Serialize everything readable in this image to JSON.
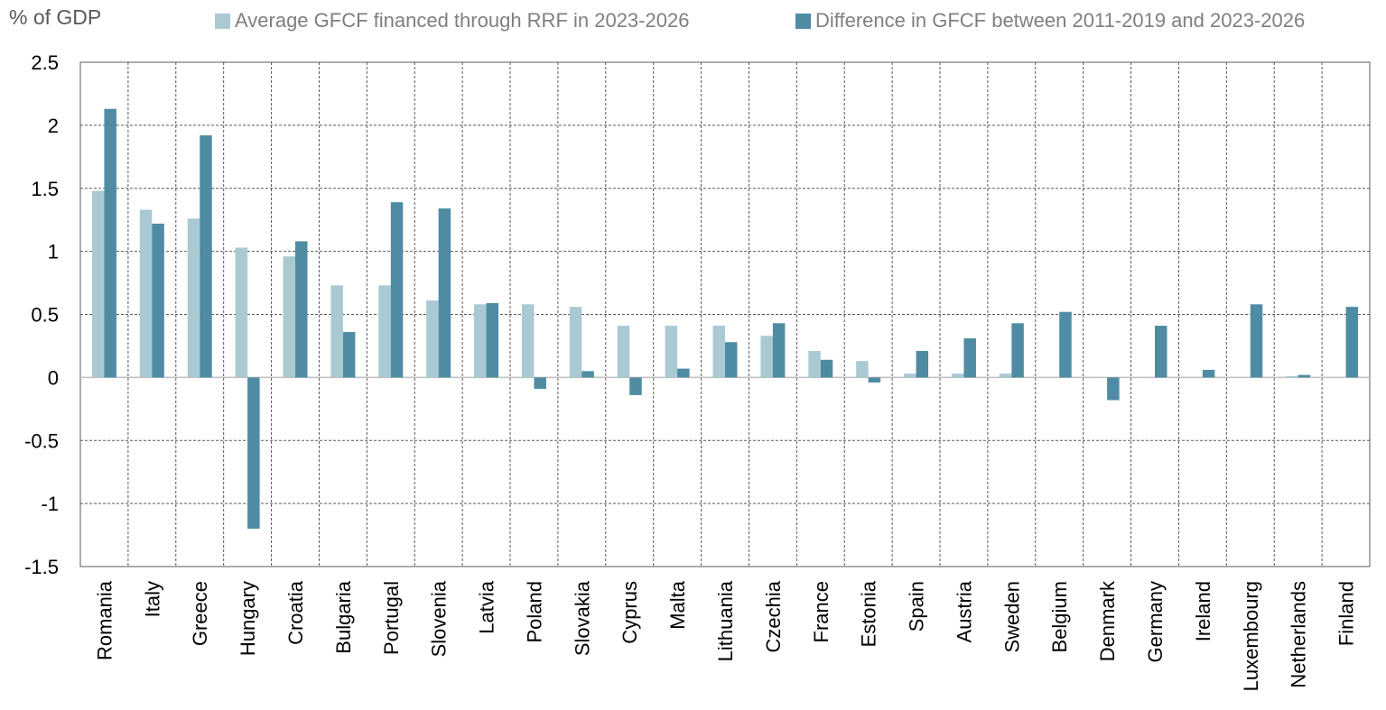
{
  "chart_data": {
    "type": "bar",
    "ylabel": "% of GDP",
    "ylim": [
      -1.5,
      2.5
    ],
    "yticks": [
      "2.5",
      "2",
      "1.5",
      "1",
      "0.5",
      "0",
      "-0.5",
      "-1",
      "-1.5"
    ],
    "grid": true,
    "legend_position": "top",
    "categories": [
      "Romania",
      "Italy",
      "Greece",
      "Hungary",
      "Croatia",
      "Bulgaria",
      "Portugal",
      "Slovenia",
      "Latvia",
      "Poland",
      "Slovakia",
      "Cyprus",
      "Malta",
      "Lithuania",
      "Czechia",
      "France",
      "Estonia",
      "Spain",
      "Austria",
      "Sweden",
      "Belgium",
      "Denmark",
      "Germany",
      "Ireland",
      "Luxembourg",
      "Netherlands",
      "Finland"
    ],
    "series": [
      {
        "name": "Average GFCF financed through RRF in 2023-2026",
        "color": "#a9c9d3",
        "values": [
          1.48,
          1.33,
          1.26,
          1.03,
          0.96,
          0.73,
          0.73,
          0.61,
          0.58,
          0.58,
          0.56,
          0.41,
          0.41,
          0.41,
          0.33,
          0.21,
          0.13,
          0.03,
          0.03,
          0.03,
          0.0,
          0.0,
          0.0,
          0.0,
          0.0,
          0.01,
          0.0
        ]
      },
      {
        "name": "Difference in GFCF between 2011-2019 and 2023-2026",
        "color": "#4f8ca3",
        "values": [
          2.13,
          1.22,
          1.92,
          -1.2,
          1.08,
          0.36,
          1.39,
          1.34,
          0.59,
          -0.09,
          0.05,
          -0.14,
          0.07,
          0.28,
          0.43,
          0.14,
          -0.04,
          0.21,
          0.31,
          0.43,
          0.52,
          -0.18,
          0.41,
          0.06,
          0.58,
          0.02,
          0.56
        ]
      }
    ]
  }
}
